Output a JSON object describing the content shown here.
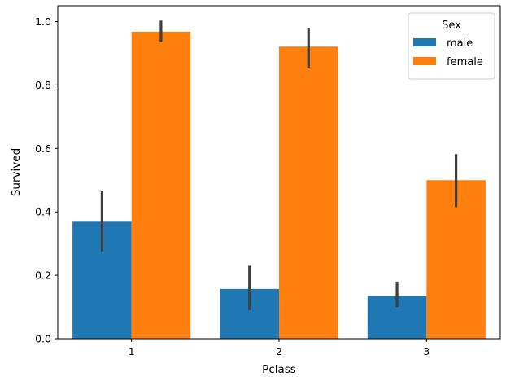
{
  "chart_data": {
    "type": "bar",
    "title": "",
    "xlabel": "Pclass",
    "ylabel": "Survived",
    "categories": [
      "1",
      "2",
      "3"
    ],
    "ylim": [
      0.0,
      1.05
    ],
    "yticks": [
      "0.0",
      "0.2",
      "0.4",
      "0.6",
      "0.8",
      "1.0"
    ],
    "grid": false,
    "legend": {
      "title": "Sex",
      "placement": "top-right",
      "entries": [
        "male",
        "female"
      ]
    },
    "series": [
      {
        "name": "male",
        "color": "#1f77b4",
        "values": [
          0.369,
          0.157,
          0.135
        ],
        "ci_low": [
          0.275,
          0.09,
          0.1
        ],
        "ci_high": [
          0.465,
          0.23,
          0.18
        ]
      },
      {
        "name": "female",
        "color": "#ff7f0e",
        "values": [
          0.968,
          0.921,
          0.5
        ],
        "ci_low": [
          0.935,
          0.855,
          0.415
        ],
        "ci_high": [
          1.003,
          0.98,
          0.582
        ]
      }
    ]
  }
}
